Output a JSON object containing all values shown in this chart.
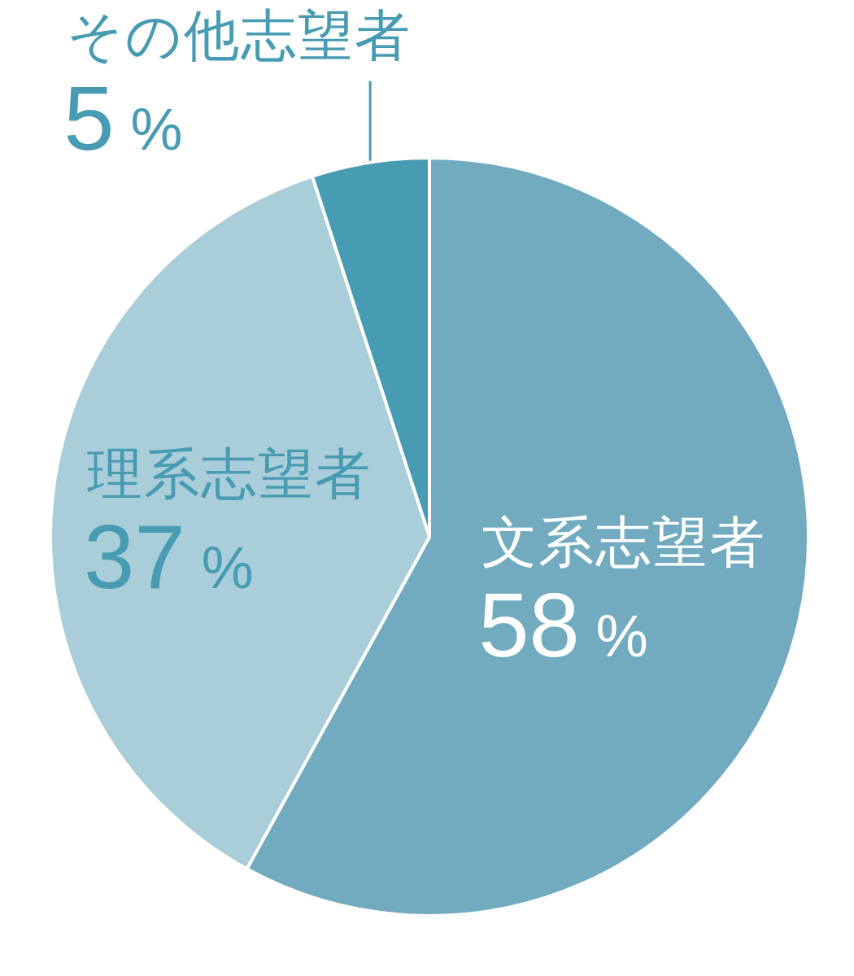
{
  "chart_data": {
    "type": "pie",
    "categories": [
      "文系志望者",
      "理系志望者",
      "その他志望者"
    ],
    "values": [
      58,
      37,
      5
    ],
    "colors": [
      "#72abc0",
      "#a9cdd9",
      "#479bb2"
    ],
    "value_labels": [
      "58 %",
      "37 %",
      "5 %"
    ]
  }
}
